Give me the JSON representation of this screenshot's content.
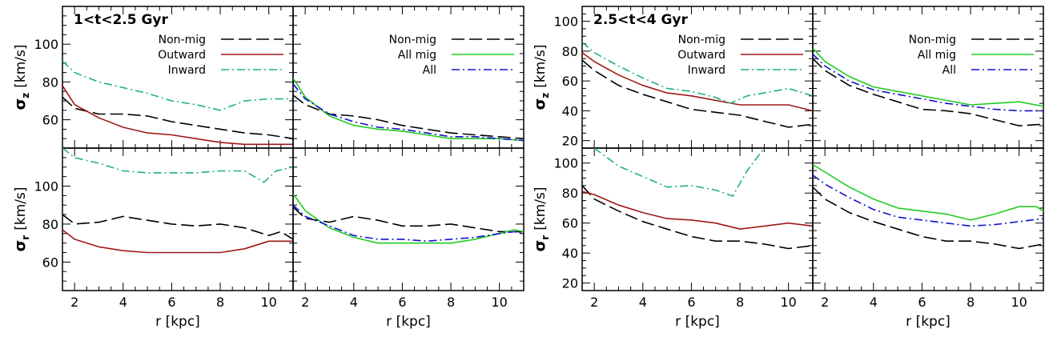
{
  "chart_data": [
    {
      "type": "line",
      "title": "1<t<2.5 Gyr",
      "xlabel": "r [kpc]",
      "x_ticks": [
        2,
        4,
        6,
        8,
        10
      ],
      "xlim": [
        1.5,
        11
      ],
      "panels": [
        {
          "ylabel": "σz [km/s]",
          "ylabel_symbol": "σ",
          "ylabel_sub": "z",
          "ylabel_unit": "[km/s]",
          "ylim": [
            45,
            120
          ],
          "y_ticks": [
            60,
            80,
            100
          ],
          "y_tick_labels": [
            "60",
            "80",
            "100"
          ],
          "legend": [
            "Non-mig",
            "Outward",
            "Inward"
          ],
          "series": [
            {
              "name": "Non-mig",
              "color": "#000000",
              "style": "dashed",
              "x": [
                1.5,
                2,
                3,
                4,
                5,
                6,
                7,
                8,
                9,
                10,
                11
              ],
              "y": [
                72,
                66,
                63,
                63,
                62,
                59,
                57,
                55,
                53,
                52,
                50
              ]
            },
            {
              "name": "Outward",
              "color": "#a01818",
              "style": "solid",
              "x": [
                1.5,
                2,
                3,
                4,
                5,
                6,
                7,
                8,
                9,
                10,
                11
              ],
              "y": [
                78,
                68,
                61,
                56,
                53,
                52,
                50,
                48,
                47,
                47,
                47
              ]
            },
            {
              "name": "Inward",
              "color": "#20b080",
              "style": "dashdot",
              "x": [
                1.5,
                2,
                3,
                4,
                5,
                6,
                7,
                8,
                9,
                10,
                11
              ],
              "y": [
                91,
                85,
                80,
                77,
                74,
                70,
                68,
                65,
                70,
                71,
                71
              ]
            }
          ]
        },
        {
          "ylim": [
            45,
            120
          ],
          "legend": [
            "Non-mig",
            "All mig",
            "All"
          ],
          "series": [
            {
              "name": "Non-mig",
              "color": "#000000",
              "style": "dashed",
              "x": [
                1.5,
                2,
                3,
                4,
                5,
                6,
                7,
                8,
                9,
                10,
                11
              ],
              "y": [
                73,
                68,
                63,
                62,
                60,
                57,
                55,
                53,
                52,
                51,
                50
              ]
            },
            {
              "name": "All mig",
              "color": "#22cc22",
              "style": "solid",
              "x": [
                1.5,
                2,
                3,
                4,
                5,
                6,
                7,
                8,
                9,
                10,
                11
              ],
              "y": [
                82,
                72,
                62,
                57,
                55,
                54,
                52,
                50,
                50,
                50,
                49
              ]
            },
            {
              "name": "All",
              "color": "#1010cc",
              "style": "dashdot",
              "x": [
                1.5,
                2,
                3,
                4,
                5,
                6,
                7,
                8,
                9,
                10,
                11
              ],
              "y": [
                79,
                71,
                63,
                59,
                56,
                55,
                53,
                51,
                51,
                50,
                49
              ]
            }
          ]
        },
        {
          "ylabel": "σr [km/s]",
          "ylabel_symbol": "σ",
          "ylabel_sub": "r",
          "ylabel_unit": "[km/s]",
          "ylim": [
            45,
            120
          ],
          "y_ticks": [
            60,
            80,
            100
          ],
          "y_tick_labels": [
            "60",
            "80",
            "100"
          ],
          "series": [
            {
              "name": "Non-mig",
              "color": "#000000",
              "style": "dashed",
              "x": [
                1.5,
                2,
                3,
                4,
                5,
                6,
                7,
                8,
                9,
                10,
                10.5,
                11
              ],
              "y": [
                85,
                80,
                81,
                84,
                82,
                80,
                79,
                80,
                78,
                74,
                76,
                72
              ]
            },
            {
              "name": "Outward",
              "color": "#a01818",
              "style": "solid",
              "x": [
                1.5,
                2,
                3,
                4,
                5,
                6,
                7,
                8,
                9,
                10,
                11
              ],
              "y": [
                77,
                72,
                68,
                66,
                65,
                65,
                65,
                65,
                67,
                71,
                71
              ]
            },
            {
              "name": "Inward",
              "color": "#20b080",
              "style": "dashdot",
              "x": [
                1.5,
                2,
                3,
                4,
                5,
                6,
                7,
                8,
                9,
                9.8,
                10.3,
                11
              ],
              "y": [
                120,
                115,
                112,
                108,
                107,
                107,
                107,
                108,
                108,
                102,
                108,
                110
              ]
            }
          ]
        },
        {
          "ylim": [
            45,
            120
          ],
          "series": [
            {
              "name": "Non-mig",
              "color": "#000000",
              "style": "dashed",
              "x": [
                1.5,
                2,
                3,
                4,
                5,
                6,
                7,
                8,
                9,
                10,
                11
              ],
              "y": [
                89,
                83,
                81,
                84,
                82,
                79,
                79,
                80,
                78,
                76,
                76
              ]
            },
            {
              "name": "All mig",
              "color": "#22cc22",
              "style": "solid",
              "x": [
                1.5,
                2,
                3,
                4,
                5,
                6,
                7,
                8,
                9,
                10,
                10.6,
                11
              ],
              "y": [
                96,
                87,
                78,
                73,
                70,
                70,
                70,
                70,
                72,
                75,
                77,
                76
              ]
            },
            {
              "name": "All",
              "color": "#1010cc",
              "style": "dashdot",
              "x": [
                1.5,
                2,
                3,
                4,
                5,
                6,
                7,
                8,
                9,
                10,
                10.6,
                11
              ],
              "y": [
                90,
                84,
                79,
                74,
                72,
                72,
                71,
                72,
                73,
                75,
                76,
                75
              ]
            }
          ]
        }
      ]
    },
    {
      "type": "line",
      "title": "2.5<t<4 Gyr",
      "xlabel": "r [kpc]",
      "x_ticks": [
        2,
        4,
        6,
        8,
        10
      ],
      "xlim": [
        1.5,
        11
      ],
      "panels": [
        {
          "ylabel": "σz [km/s]",
          "ylabel_symbol": "σ",
          "ylabel_sub": "z",
          "ylabel_unit": "[km/s]",
          "ylim": [
            15,
            110
          ],
          "y_ticks": [
            20,
            40,
            60,
            80,
            100
          ],
          "y_tick_labels": [
            "20",
            "40",
            "60",
            "80",
            "100"
          ],
          "legend": [
            "Non-mig",
            "Outward",
            "Inward"
          ],
          "series": [
            {
              "name": "Non-mig",
              "color": "#000000",
              "style": "dashed",
              "x": [
                1.5,
                2,
                3,
                4,
                5,
                6,
                7,
                8,
                9,
                10,
                11
              ],
              "y": [
                74,
                67,
                57,
                51,
                46,
                41,
                39,
                37,
                33,
                29,
                31
              ]
            },
            {
              "name": "Outward",
              "color": "#a01818",
              "style": "solid",
              "x": [
                1.5,
                2,
                3,
                4,
                5,
                6,
                7,
                8,
                9,
                10,
                11
              ],
              "y": [
                79,
                73,
                64,
                57,
                52,
                50,
                47,
                44,
                44,
                44,
                40
              ]
            },
            {
              "name": "Inward",
              "color": "#20b080",
              "style": "dashdot",
              "x": [
                1.5,
                2,
                3,
                4,
                5,
                6,
                7,
                7.6,
                8.3,
                9,
                10,
                11
              ],
              "y": [
                86,
                79,
                70,
                62,
                55,
                53,
                49,
                45,
                50,
                52,
                55,
                50
              ]
            }
          ]
        },
        {
          "ylim": [
            15,
            110
          ],
          "legend": [
            "Non-mig",
            "All mig",
            "All"
          ],
          "series": [
            {
              "name": "Non-mig",
              "color": "#000000",
              "style": "dashed",
              "x": [
                1.5,
                2,
                3,
                4,
                5,
                6,
                7,
                8,
                9,
                10,
                11
              ],
              "y": [
                75,
                67,
                57,
                51,
                46,
                41,
                40,
                38,
                34,
                30,
                31
              ]
            },
            {
              "name": "All mig",
              "color": "#22cc22",
              "style": "solid",
              "x": [
                1.5,
                2,
                3,
                4,
                5,
                6,
                7,
                8,
                9,
                10,
                11
              ],
              "y": [
                82,
                73,
                63,
                56,
                53,
                50,
                47,
                44,
                45,
                46,
                43
              ]
            },
            {
              "name": "All",
              "color": "#1010cc",
              "style": "dashdot",
              "x": [
                1.5,
                2,
                3,
                4,
                5,
                6,
                7,
                8,
                9,
                10,
                11
              ],
              "y": [
                78,
                70,
                60,
                54,
                51,
                48,
                45,
                43,
                41,
                40,
                40
              ]
            }
          ]
        },
        {
          "ylabel": "σr [km/s]",
          "ylabel_symbol": "σ",
          "ylabel_sub": "r",
          "ylabel_unit": "[km/s]",
          "ylim": [
            15,
            110
          ],
          "y_ticks": [
            20,
            40,
            60,
            80,
            100
          ],
          "y_tick_labels": [
            "20",
            "40",
            "60",
            "80",
            "100"
          ],
          "series": [
            {
              "name": "Non-mig",
              "color": "#000000",
              "style": "dashed",
              "x": [
                1.5,
                2,
                3,
                4,
                5,
                6,
                7,
                8,
                9,
                10,
                11
              ],
              "y": [
                85,
                76,
                68,
                61,
                56,
                51,
                48,
                48,
                46,
                43,
                45
              ]
            },
            {
              "name": "Outward",
              "color": "#a01818",
              "style": "solid",
              "x": [
                1.5,
                2,
                3,
                4,
                5,
                6,
                7,
                8,
                9,
                10,
                11
              ],
              "y": [
                81,
                79,
                72,
                67,
                63,
                62,
                60,
                56,
                58,
                60,
                58
              ]
            },
            {
              "name": "Inward",
              "color": "#20b080",
              "style": "dashdot",
              "x": [
                2,
                3,
                4,
                5,
                6,
                7,
                7.7,
                8.3,
                9
              ],
              "y": [
                110,
                98,
                91,
                84,
                85,
                82,
                78,
                95,
                110
              ]
            }
          ]
        },
        {
          "ylim": [
            15,
            110
          ],
          "series": [
            {
              "name": "Non-mig",
              "color": "#000000",
              "style": "dashed",
              "x": [
                1.5,
                2,
                3,
                4,
                5,
                6,
                7,
                8,
                9,
                10,
                11
              ],
              "y": [
                84,
                76,
                67,
                61,
                56,
                51,
                48,
                48,
                46,
                43,
                46
              ]
            },
            {
              "name": "All mig",
              "color": "#22cc22",
              "style": "solid",
              "x": [
                1.5,
                2,
                3,
                4,
                5,
                6,
                7,
                8,
                9,
                10,
                10.7,
                11
              ],
              "y": [
                99,
                94,
                84,
                76,
                70,
                68,
                66,
                62,
                66,
                71,
                71,
                68
              ]
            },
            {
              "name": "All",
              "color": "#1010cc",
              "style": "dashdot",
              "x": [
                1.5,
                2,
                3,
                4,
                5,
                6,
                7,
                8,
                9,
                10,
                11
              ],
              "y": [
                92,
                86,
                77,
                69,
                64,
                62,
                60,
                58,
                59,
                61,
                63
              ]
            }
          ]
        }
      ]
    }
  ]
}
